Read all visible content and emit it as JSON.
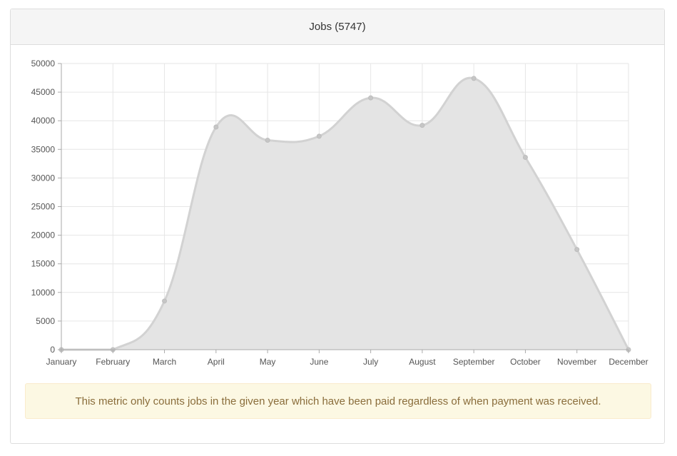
{
  "panel": {
    "title": "Jobs (5747)"
  },
  "notice": {
    "text": "This metric only counts jobs in the given year which have been paid regardless of when payment was received."
  },
  "colors": {
    "fill": "#e4e4e4",
    "line": "#d2d2d2",
    "point": "#c6c6c6",
    "grid": "#e6e6e6",
    "axis": "#aaaaaa",
    "tick_text": "#555555"
  },
  "chart_data": {
    "type": "area",
    "categories": [
      "January",
      "February",
      "March",
      "April",
      "May",
      "June",
      "July",
      "August",
      "September",
      "October",
      "November",
      "December"
    ],
    "values": [
      0,
      0,
      8500,
      38900,
      36600,
      37300,
      44000,
      39200,
      47400,
      33600,
      17500,
      0
    ],
    "yticks": [
      0,
      5000,
      10000,
      15000,
      20000,
      25000,
      30000,
      35000,
      40000,
      45000,
      50000
    ],
    "ylim": [
      0,
      50000
    ],
    "grid": true,
    "title": "",
    "xlabel": "",
    "ylabel": ""
  }
}
